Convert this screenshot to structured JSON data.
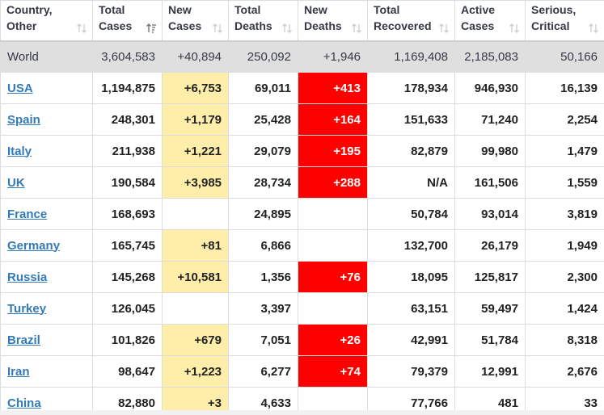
{
  "headers": [
    {
      "label": "Country,\nOther"
    },
    {
      "label": "Total\nCases"
    },
    {
      "label": "New\nCases"
    },
    {
      "label": "Total\nDeaths"
    },
    {
      "label": "New\nDeaths"
    },
    {
      "label": "Total\nRecovered"
    },
    {
      "label": "Active\nCases"
    },
    {
      "label": "Serious,\nCritical"
    }
  ],
  "sort_icons": [
    "sort-both-icon",
    "sort-desc-active-icon",
    "sort-both-icon",
    "sort-both-icon",
    "sort-both-icon",
    "sort-both-icon",
    "sort-both-icon",
    "sort-both-icon"
  ],
  "colors": {
    "new_cases_highlight": "#ffeeaa",
    "new_deaths_highlight": "#ff0000",
    "world_row_bg": "#dfdfdf",
    "link": "#337ab7"
  },
  "world": {
    "country": "World",
    "total_cases": "3,604,583",
    "new_cases": "+40,894",
    "total_deaths": "250,092",
    "new_deaths": "+1,946",
    "total_recovered": "1,169,408",
    "active_cases": "2,185,083",
    "serious_critical": "50,166"
  },
  "rows": [
    {
      "country": "USA",
      "total_cases": "1,194,875",
      "new_cases": "+6,753",
      "total_deaths": "69,011",
      "new_deaths": "+413",
      "total_recovered": "178,934",
      "active_cases": "946,930",
      "serious_critical": "16,139"
    },
    {
      "country": "Spain",
      "total_cases": "248,301",
      "new_cases": "+1,179",
      "total_deaths": "25,428",
      "new_deaths": "+164",
      "total_recovered": "151,633",
      "active_cases": "71,240",
      "serious_critical": "2,254"
    },
    {
      "country": "Italy",
      "total_cases": "211,938",
      "new_cases": "+1,221",
      "total_deaths": "29,079",
      "new_deaths": "+195",
      "total_recovered": "82,879",
      "active_cases": "99,980",
      "serious_critical": "1,479"
    },
    {
      "country": "UK",
      "total_cases": "190,584",
      "new_cases": "+3,985",
      "total_deaths": "28,734",
      "new_deaths": "+288",
      "total_recovered": "N/A",
      "active_cases": "161,506",
      "serious_critical": "1,559"
    },
    {
      "country": "France",
      "total_cases": "168,693",
      "new_cases": "",
      "total_deaths": "24,895",
      "new_deaths": "",
      "total_recovered": "50,784",
      "active_cases": "93,014",
      "serious_critical": "3,819"
    },
    {
      "country": "Germany",
      "total_cases": "165,745",
      "new_cases": "+81",
      "total_deaths": "6,866",
      "new_deaths": "",
      "total_recovered": "132,700",
      "active_cases": "26,179",
      "serious_critical": "1,949"
    },
    {
      "country": "Russia",
      "total_cases": "145,268",
      "new_cases": "+10,581",
      "total_deaths": "1,356",
      "new_deaths": "+76",
      "total_recovered": "18,095",
      "active_cases": "125,817",
      "serious_critical": "2,300"
    },
    {
      "country": "Turkey",
      "total_cases": "126,045",
      "new_cases": "",
      "total_deaths": "3,397",
      "new_deaths": "",
      "total_recovered": "63,151",
      "active_cases": "59,497",
      "serious_critical": "1,424"
    },
    {
      "country": "Brazil",
      "total_cases": "101,826",
      "new_cases": "+679",
      "total_deaths": "7,051",
      "new_deaths": "+26",
      "total_recovered": "42,991",
      "active_cases": "51,784",
      "serious_critical": "8,318"
    },
    {
      "country": "Iran",
      "total_cases": "98,647",
      "new_cases": "+1,223",
      "total_deaths": "6,277",
      "new_deaths": "+74",
      "total_recovered": "79,379",
      "active_cases": "12,991",
      "serious_critical": "2,676"
    },
    {
      "country": "China",
      "total_cases": "82,880",
      "new_cases": "+3",
      "total_deaths": "4,633",
      "new_deaths": "",
      "total_recovered": "77,766",
      "active_cases": "481",
      "serious_critical": "33"
    }
  ]
}
